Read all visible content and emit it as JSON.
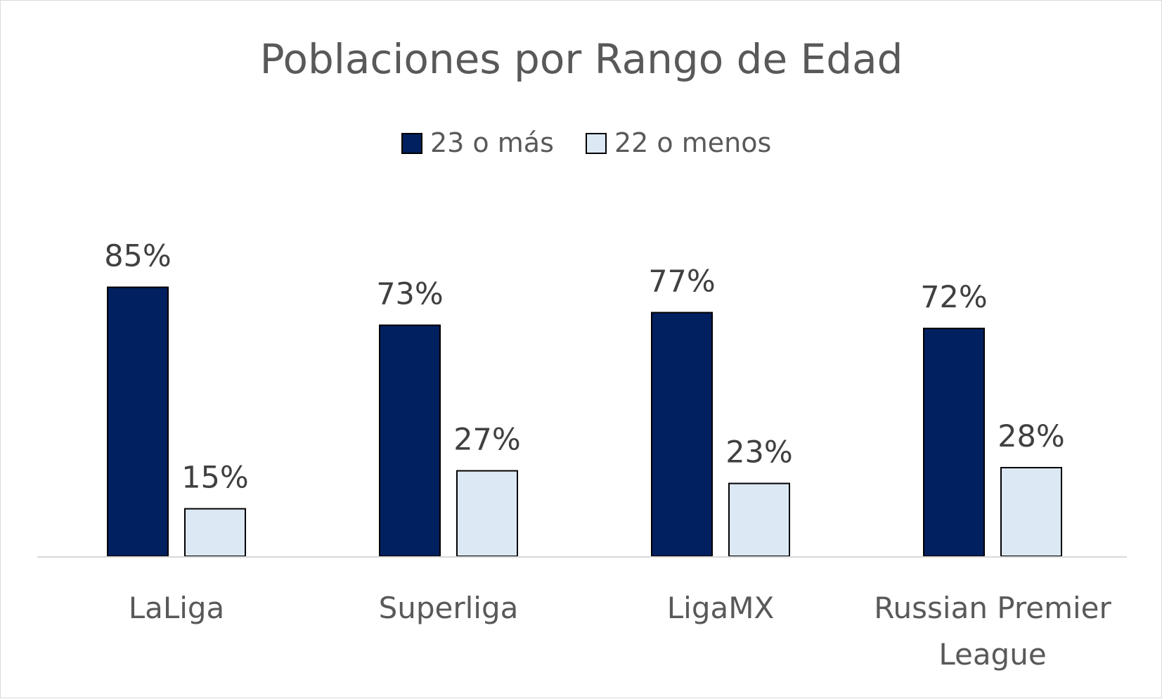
{
  "chart_data": {
    "type": "bar",
    "title": "Poblaciones por Rango de Edad",
    "categories": [
      [
        "LaLiga"
      ],
      [
        "Superliga"
      ],
      [
        "LigaMX"
      ],
      [
        "Russian Premier",
        "League"
      ]
    ],
    "series": [
      {
        "name": "23 o más",
        "values": [
          85,
          73,
          77,
          72
        ],
        "labels": [
          "85%",
          "73%",
          "77%",
          "72%"
        ],
        "color": "#002060"
      },
      {
        "name": "22 o menos",
        "values": [
          15,
          27,
          23,
          28
        ],
        "labels": [
          "15%",
          "27%",
          "23%",
          "28%"
        ],
        "color": "#dde8f5"
      }
    ],
    "ylim": [
      0,
      100
    ],
    "unit": "%",
    "grid": false,
    "legend_position": "top",
    "data_labels": true
  }
}
